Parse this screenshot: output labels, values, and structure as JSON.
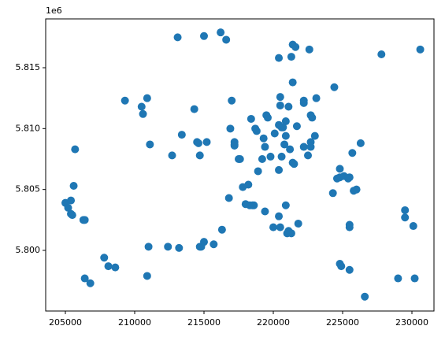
{
  "chart_data": {
    "type": "scatter",
    "color": "#1f77b4",
    "y_offset_label": "1e6",
    "x": [
      205000,
      205200,
      205400,
      205400,
      205500,
      205600,
      205700,
      206300,
      206400,
      206400,
      206800,
      207800,
      208100,
      208600,
      209300,
      210500,
      210600,
      210900,
      211000,
      210900,
      211100,
      212400,
      212700,
      213100,
      213200,
      213400,
      214300,
      214500,
      214600,
      214700,
      214700,
      214800,
      215000,
      215000,
      215200,
      215700,
      216200,
      216300,
      216600,
      216800,
      216900,
      217000,
      217200,
      217200,
      217200,
      217500,
      217600,
      217800,
      218000,
      218200,
      218300,
      218500,
      218600,
      218400,
      218700,
      218800,
      218900,
      219200,
      219300,
      219400,
      219400,
      219500,
      219600,
      219800,
      220000,
      220100,
      220400,
      220400,
      220500,
      220500,
      220400,
      220400,
      220500,
      220600,
      220600,
      220700,
      220800,
      220900,
      220900,
      220900,
      221000,
      221100,
      221100,
      221200,
      221300,
      221300,
      221400,
      221400,
      221400,
      221500,
      221600,
      221700,
      221800,
      222200,
      222200,
      222200,
      222500,
      222600,
      222700,
      222700,
      222700,
      222800,
      223000,
      223100,
      224300,
      224400,
      224600,
      224800,
      224800,
      224800,
      224900,
      225100,
      225400,
      225500,
      225500,
      225500,
      225500,
      225700,
      225800,
      226000,
      226300,
      226600,
      227800,
      229000,
      229500,
      229500,
      230100,
      230200,
      230600
    ],
    "values": [
      5803900,
      5803500,
      5804100,
      5803000,
      5802900,
      5805300,
      5808300,
      5802500,
      5802500,
      5797700,
      5797300,
      5799400,
      5798700,
      5798600,
      5812300,
      5811800,
      5811200,
      5812500,
      5800300,
      5797900,
      5808700,
      5800300,
      5807800,
      5817500,
      5800200,
      5809500,
      5811600,
      5808900,
      5808800,
      5807800,
      5800300,
      5800300,
      5800700,
      5817600,
      5808900,
      5800500,
      5817900,
      5801700,
      5817300,
      5804300,
      5810000,
      5812300,
      5808600,
      5808900,
      5808700,
      5807500,
      5807500,
      5805200,
      5803800,
      5805400,
      5803700,
      5803700,
      5803700,
      5810800,
      5810000,
      5809800,
      5806500,
      5807500,
      5809200,
      5803200,
      5808500,
      5811100,
      5810900,
      5807700,
      5801900,
      5809600,
      5810300,
      5815800,
      5812600,
      5811900,
      5806600,
      5802800,
      5801900,
      5810100,
      5807700,
      5810100,
      5808700,
      5810600,
      5803700,
      5809400,
      5801400,
      5801600,
      5811800,
      5808300,
      5801400,
      5815900,
      5816900,
      5813800,
      5807200,
      5807100,
      5816700,
      5810200,
      5802200,
      5812100,
      5808500,
      5812300,
      5807800,
      5816500,
      5808900,
      5811100,
      5808500,
      5810900,
      5809400,
      5812500,
      5804700,
      5813400,
      5805900,
      5798900,
      5806700,
      5806000,
      5798700,
      5806100,
      5805900,
      5802100,
      5801900,
      5798400,
      5806000,
      5808000,
      5804900,
      5805000,
      5808800,
      5796200,
      5816100,
      5797700,
      5803300,
      5802700,
      5802000,
      5797700,
      5816500
    ],
    "xlim": [
      203580,
      231590
    ],
    "ylim": [
      5795020,
      5819010
    ],
    "xticks": [
      205000,
      210000,
      215000,
      220000,
      225000,
      230000
    ],
    "yticks": [
      {
        "value": 5800000,
        "label": "5.800"
      },
      {
        "value": 5805000,
        "label": "5.805"
      },
      {
        "value": 5810000,
        "label": "5.810"
      },
      {
        "value": 5815000,
        "label": "5.815"
      }
    ]
  }
}
